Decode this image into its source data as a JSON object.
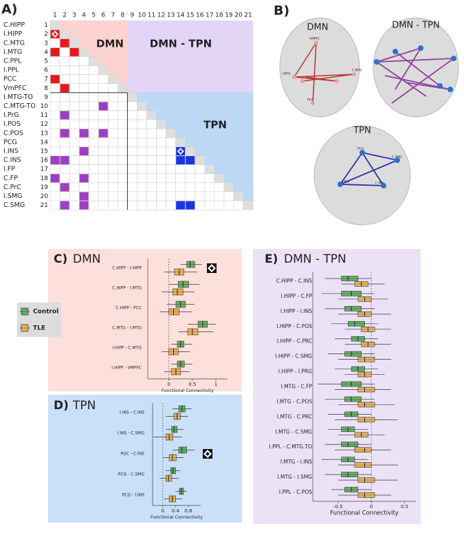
{
  "panels": {
    "a": "A)",
    "b": "B)"
  },
  "matrix": {
    "indices": [
      1,
      2,
      3,
      4,
      5,
      6,
      7,
      8,
      9,
      10,
      11,
      12,
      13,
      14,
      15,
      16,
      17,
      18,
      19,
      20,
      21
    ],
    "row_labels": [
      "C.HIPP",
      "I.HIPP",
      "C.MTG",
      "I.MTG",
      "C.PPL",
      "I.PPL",
      "PCC",
      "VmPFC",
      "I.MTG-TO",
      "C.MTG-TO",
      "I.PrG",
      "I.POS",
      "C.POS",
      "PCG",
      "I.INS",
      "C.INS",
      "I.FP",
      "C.FP",
      "C.PrC",
      "I.SMG",
      "C.SMG"
    ],
    "region_labels": [
      "DMN",
      "DMN - TPN",
      "TPN"
    ],
    "cells": [
      {
        "row": 2,
        "col": 1,
        "network": "DMN",
        "significant": true
      },
      {
        "row": 3,
        "col": 2,
        "network": "DMN"
      },
      {
        "row": 4,
        "col": 1,
        "network": "DMN"
      },
      {
        "row": 4,
        "col": 3,
        "network": "DMN"
      },
      {
        "row": 7,
        "col": 1,
        "network": "DMN"
      },
      {
        "row": 8,
        "col": 2,
        "network": "DMN"
      },
      {
        "row": 10,
        "col": 6,
        "network": "DMN - TPN"
      },
      {
        "row": 11,
        "col": 2,
        "network": "DMN - TPN"
      },
      {
        "row": 13,
        "col": 2,
        "network": "DMN - TPN"
      },
      {
        "row": 13,
        "col": 4,
        "network": "DMN - TPN"
      },
      {
        "row": 13,
        "col": 6,
        "network": "DMN - TPN"
      },
      {
        "row": 15,
        "col": 4,
        "network": "DMN - TPN"
      },
      {
        "row": 16,
        "col": 1,
        "network": "DMN - TPN"
      },
      {
        "row": 16,
        "col": 2,
        "network": "DMN - TPN"
      },
      {
        "row": 18,
        "col": 1,
        "network": "DMN - TPN"
      },
      {
        "row": 18,
        "col": 4,
        "network": "DMN - TPN"
      },
      {
        "row": 19,
        "col": 2,
        "network": "DMN - TPN"
      },
      {
        "row": 20,
        "col": 4,
        "network": "DMN - TPN"
      },
      {
        "row": 21,
        "col": 2,
        "network": "DMN - TPN"
      },
      {
        "row": 21,
        "col": 4,
        "network": "DMN - TPN"
      },
      {
        "row": 15,
        "col": 14,
        "network": "TPN",
        "significant": true
      },
      {
        "row": 16,
        "col": 14,
        "network": "TPN"
      },
      {
        "row": 16,
        "col": 15,
        "network": "TPN"
      },
      {
        "row": 21,
        "col": 14,
        "network": "TPN"
      },
      {
        "row": 21,
        "col": 15,
        "network": "TPN"
      }
    ]
  },
  "brains": {
    "titles": [
      "DMN",
      "DMN - TPN",
      "TPN"
    ],
    "dmn_nodes": [
      "VMPFC",
      "I.MTG",
      "C.MTG",
      "PCC"
    ],
    "tpn_nodes": [
      "PCG",
      "C.SMG",
      "I.INS",
      "C.INS"
    ]
  },
  "chart_data": [
    {
      "type": "box",
      "panel": "C)",
      "title": "DMN",
      "categories": [
        "C.HIPP - I.HIPP",
        "C.HIPP - I.MTG",
        "C.HIPP - PCC",
        "C.MTG - I.MTG",
        "I.HIPP - C.MTG",
        "I.HIPP - VMPFC"
      ],
      "series": [
        {
          "name": "Control",
          "color": "#3a9e3a",
          "values": [
            [
              0.25,
              0.38,
              0.45,
              0.55,
              0.7
            ],
            [
              0.0,
              0.2,
              0.3,
              0.42,
              0.65
            ],
            [
              -0.05,
              0.15,
              0.25,
              0.35,
              0.55
            ],
            [
              0.4,
              0.62,
              0.72,
              0.82,
              1.0
            ],
            [
              0.05,
              0.18,
              0.25,
              0.32,
              0.5
            ],
            [
              0.05,
              0.18,
              0.25,
              0.33,
              0.5
            ]
          ]
        },
        {
          "name": "TLE",
          "color": "#e0a030",
          "values": [
            [
              -0.1,
              0.12,
              0.22,
              0.32,
              0.6
            ],
            [
              -0.15,
              0.08,
              0.18,
              0.3,
              0.55
            ],
            [
              -0.2,
              0.0,
              0.1,
              0.22,
              0.5
            ],
            [
              0.2,
              0.4,
              0.5,
              0.62,
              0.95
            ],
            [
              -0.15,
              0.0,
              0.1,
              0.2,
              0.45
            ],
            [
              -0.1,
              0.05,
              0.15,
              0.25,
              0.45
            ]
          ]
        }
      ],
      "significant": [
        0
      ],
      "xlim": [
        -0.45,
        1.25
      ],
      "xticks": [
        0,
        0.5,
        1
      ],
      "x_label": "Functional Connectivity"
    },
    {
      "type": "box",
      "panel": "D)",
      "title": "TPN",
      "categories": [
        "I.INS - C.INS",
        "I.INS - C.SMG",
        "PGC - C.INS",
        "PCG - C.SMG",
        "PCG - I.INS"
      ],
      "series": [
        {
          "name": "Control",
          "color": "#3a9e3a",
          "values": [
            [
              0.3,
              0.5,
              0.6,
              0.7,
              0.9
            ],
            [
              0.1,
              0.28,
              0.35,
              0.45,
              0.65
            ],
            [
              0.3,
              0.5,
              0.6,
              0.75,
              1.0
            ],
            [
              0.1,
              0.25,
              0.32,
              0.4,
              0.55
            ],
            [
              0.4,
              0.52,
              0.58,
              0.65,
              0.75
            ]
          ]
        },
        {
          "name": "TLE",
          "color": "#e0a030",
          "values": [
            [
              0.1,
              0.35,
              0.45,
              0.55,
              0.8
            ],
            [
              -0.3,
              0.1,
              0.2,
              0.32,
              0.6
            ],
            [
              0.0,
              0.2,
              0.3,
              0.42,
              0.65
            ],
            [
              -0.1,
              0.1,
              0.18,
              0.28,
              0.5
            ],
            [
              0.05,
              0.2,
              0.3,
              0.4,
              0.6
            ]
          ]
        }
      ],
      "significant": [
        2
      ],
      "xlim": [
        -0.32,
        1.19
      ],
      "xticks": [
        0,
        0.4,
        0.8
      ],
      "x_label": "Functional Connectivity"
    },
    {
      "type": "box",
      "panel": "E)",
      "title": "DMN - TPN",
      "categories": [
        "C.HIPP - C.INS",
        "I.HIPP - C.FP",
        "I.HIPP - I.INS",
        "I.HIPP - C.POS",
        "I.HIPP - C.PRC",
        "I.HIPP - C.SMG",
        "I.HIPP - I.PRG",
        "I.MTG - C.FP",
        "I.MTG - C.POS",
        "I.MTG - C.PRC",
        "I.MTG - C.SMG",
        "I.PPL - C.MTG.TO",
        "I.MTG - I.INS",
        "I.MTG - I.SMG",
        "I.PPL - C.POS"
      ],
      "series": [
        {
          "name": "Control",
          "color": "#3a9e3a",
          "values": [
            [
              -0.7,
              -0.45,
              -0.35,
              -0.2,
              0.0
            ],
            [
              -0.75,
              -0.45,
              -0.3,
              -0.15,
              0.05
            ],
            [
              -0.7,
              -0.4,
              -0.3,
              -0.15,
              0.05
            ],
            [
              -0.6,
              -0.35,
              -0.25,
              -0.1,
              0.1
            ],
            [
              -0.55,
              -0.3,
              -0.2,
              -0.1,
              0.1
            ],
            [
              -0.65,
              -0.4,
              -0.3,
              -0.15,
              0.05
            ],
            [
              -0.55,
              -0.3,
              -0.2,
              -0.1,
              0.1
            ],
            [
              -0.8,
              -0.45,
              -0.3,
              -0.15,
              0.05
            ],
            [
              -0.7,
              -0.4,
              -0.3,
              -0.15,
              0.05
            ],
            [
              -0.65,
              -0.4,
              -0.3,
              -0.2,
              0.0
            ],
            [
              -0.65,
              -0.45,
              -0.35,
              -0.25,
              -0.05
            ],
            [
              -0.7,
              -0.45,
              -0.35,
              -0.2,
              0.0
            ],
            [
              -0.75,
              -0.45,
              -0.35,
              -0.25,
              -0.05
            ],
            [
              -0.7,
              -0.45,
              -0.35,
              -0.2,
              0.0
            ],
            [
              -0.6,
              -0.4,
              -0.3,
              -0.2,
              0.0
            ]
          ]
        },
        {
          "name": "TLE",
          "color": "#e0a030",
          "values": [
            [
              -0.45,
              -0.25,
              -0.15,
              -0.05,
              0.2
            ],
            [
              -0.5,
              -0.2,
              -0.1,
              0.0,
              0.25
            ],
            [
              -0.5,
              -0.2,
              -0.1,
              0.0,
              0.3
            ],
            [
              -0.4,
              -0.15,
              -0.05,
              0.05,
              0.3
            ],
            [
              -0.4,
              -0.15,
              -0.05,
              0.05,
              0.3
            ],
            [
              -0.5,
              -0.2,
              -0.1,
              0.05,
              0.3
            ],
            [
              -0.4,
              -0.2,
              -0.1,
              0.0,
              0.2
            ],
            [
              -0.55,
              -0.2,
              -0.1,
              0.05,
              0.3
            ],
            [
              -0.5,
              -0.2,
              -0.1,
              0.05,
              0.35
            ],
            [
              -0.55,
              -0.2,
              -0.1,
              0.05,
              0.4
            ],
            [
              -0.5,
              -0.25,
              -0.15,
              -0.05,
              0.2
            ],
            [
              -0.55,
              -0.25,
              -0.1,
              0.0,
              0.3
            ],
            [
              -0.5,
              -0.25,
              -0.1,
              0.0,
              0.4
            ],
            [
              -0.5,
              -0.2,
              -0.1,
              0.05,
              0.4
            ],
            [
              -0.5,
              -0.2,
              -0.1,
              0.05,
              0.3
            ]
          ]
        }
      ],
      "significant": [],
      "xlim": [
        -0.88,
        0.67
      ],
      "xticks": [
        -0.5,
        0,
        0.5
      ],
      "x_label": "Functional Connectivity"
    }
  ]
}
